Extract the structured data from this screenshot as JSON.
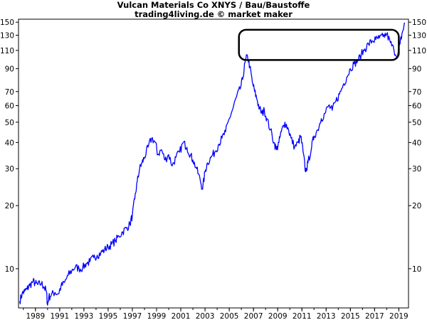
{
  "chart_data": {
    "type": "line",
    "title": "Vulcan Materials Co XNYS / Bau/Baustoffe",
    "subtitle": "trading4living.de © market maker",
    "y_scale": "log",
    "ylim": [
      6.5,
      155
    ],
    "xlim": [
      1987.6,
      2019.8
    ],
    "y_ticks": [
      10,
      20,
      30,
      40,
      50,
      60,
      70,
      90,
      110,
      130,
      150
    ],
    "x_ticks": [
      1989,
      1991,
      1993,
      1995,
      1997,
      1999,
      2001,
      2003,
      2005,
      2007,
      2009,
      2011,
      2013,
      2015,
      2017,
      2019
    ],
    "grid": false,
    "line_color": "#0000ff",
    "series": [
      {
        "x": [
          1987.7,
          1987.9,
          1988.1,
          1988.3,
          1988.5,
          1988.8,
          1989.0,
          1989.2,
          1989.5,
          1989.7,
          1989.9,
          1990.0,
          1990.1,
          1990.3,
          1990.6,
          1990.9,
          1991.1,
          1991.4,
          1991.7,
          1992.0,
          1992.3,
          1992.6,
          1992.9,
          1993.2,
          1993.5,
          1993.8,
          1994.1,
          1994.4,
          1994.7,
          1995.0,
          1995.3,
          1995.6,
          1995.9,
          1996.2,
          1996.5,
          1996.8,
          1997.0,
          1997.2,
          1997.4,
          1997.6,
          1997.8,
          1998.0,
          1998.3,
          1998.6,
          1998.9,
          1999.1,
          1999.4,
          1999.7,
          2000.0,
          2000.3,
          2000.6,
          2000.9,
          2001.2,
          2001.5,
          2001.8,
          2002.0,
          2002.3,
          2002.6,
          2002.8,
          2003.0,
          2003.2,
          2003.5,
          2003.8,
          2004.1,
          2004.4,
          2004.7,
          2005.0,
          2005.3,
          2005.6,
          2005.9,
          2006.1,
          2006.3,
          2006.5,
          2006.7,
          2006.9,
          2007.1,
          2007.3,
          2007.5,
          2007.7,
          2007.9,
          2008.1,
          2008.4,
          2008.7,
          2008.9,
          2009.1,
          2009.3,
          2009.6,
          2009.9,
          2010.1,
          2010.4,
          2010.7,
          2010.9,
          2011.1,
          2011.3,
          2011.5,
          2011.8,
          2012.0,
          2012.3,
          2012.6,
          2012.9,
          2013.2,
          2013.5,
          2013.8,
          2014.1,
          2014.4,
          2014.7,
          2015.0,
          2015.3,
          2015.6,
          2015.9,
          2016.2,
          2016.5,
          2016.8,
          2017.1,
          2017.4,
          2017.7,
          2018.0,
          2018.3,
          2018.6,
          2018.9,
          2019.1,
          2019.3,
          2019.5
        ],
        "y": [
          7.0,
          7.6,
          7.8,
          8.0,
          8.3,
          8.7,
          8.5,
          8.4,
          8.5,
          8.2,
          7.8,
          6.7,
          7.3,
          7.5,
          7.7,
          7.6,
          8.2,
          8.6,
          9.3,
          9.8,
          10.2,
          10.0,
          10.1,
          10.6,
          10.8,
          11.3,
          11.6,
          11.9,
          12.3,
          12.7,
          13.1,
          13.6,
          14.3,
          15.0,
          15.6,
          16.3,
          18.0,
          21.5,
          26.0,
          30.0,
          32.0,
          34.0,
          38.0,
          42.0,
          40.0,
          35.0,
          37.0,
          33.0,
          35.0,
          31.0,
          34.0,
          36.0,
          40.0,
          38.0,
          35.0,
          33.0,
          30.0,
          26.5,
          24.0,
          29.0,
          32.0,
          34.0,
          36.0,
          39.0,
          42.0,
          45.0,
          52.0,
          58.0,
          66.0,
          72.0,
          80.0,
          96.0,
          104.0,
          92.0,
          78.0,
          70.0,
          64.0,
          58.0,
          55.0,
          57.0,
          52.0,
          46.0,
          40.0,
          37.0,
          40.0,
          45.0,
          50.0,
          46.0,
          42.0,
          38.0,
          40.0,
          43.0,
          36.0,
          29.0,
          32.0,
          38.0,
          43.0,
          46.0,
          52.0,
          55.0,
          60.0,
          57.0,
          63.0,
          68.0,
          75.0,
          82.0,
          90.0,
          95.0,
          98.0,
          105.0,
          112.0,
          118.0,
          122.0,
          124.0,
          126.0,
          128.0,
          132.0,
          120.0,
          110.0,
          104.0,
          118.0,
          135.0,
          148.0
        ]
      }
    ],
    "annotation": {
      "shape": "rounded-rectangle",
      "x_range": [
        2005.8,
        2019.0
      ],
      "y_range": [
        99,
        138
      ],
      "color": "#000000"
    }
  }
}
